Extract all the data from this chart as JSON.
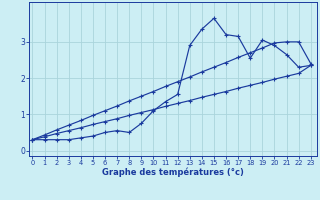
{
  "xlabel": "Graphe des températures (°c)",
  "background_color": "#cceef4",
  "grid_color": "#aad4dc",
  "line_color": "#1a3a9e",
  "x_ticks": [
    0,
    1,
    2,
    3,
    4,
    5,
    6,
    7,
    8,
    9,
    10,
    11,
    12,
    13,
    14,
    15,
    16,
    17,
    18,
    19,
    20,
    21,
    22,
    23
  ],
  "ylim": [
    -0.15,
    4.1
  ],
  "xlim": [
    -0.3,
    23.5
  ],
  "line1_y": [
    0.3,
    0.3,
    0.3,
    0.3,
    0.35,
    0.4,
    0.5,
    0.55,
    0.5,
    0.75,
    1.1,
    1.35,
    1.55,
    2.9,
    3.35,
    3.65,
    3.2,
    3.15,
    2.55,
    3.05,
    2.9,
    2.65,
    2.3,
    2.35
  ],
  "line2_y": [
    0.3,
    0.38,
    0.47,
    0.55,
    0.63,
    0.72,
    0.8,
    0.88,
    0.97,
    1.05,
    1.13,
    1.22,
    1.3,
    1.38,
    1.47,
    1.55,
    1.63,
    1.72,
    1.8,
    1.88,
    1.97,
    2.05,
    2.13,
    2.35
  ],
  "line3_y": [
    0.3,
    0.43,
    0.57,
    0.7,
    0.83,
    0.97,
    1.1,
    1.23,
    1.37,
    1.5,
    1.63,
    1.77,
    1.9,
    2.03,
    2.17,
    2.3,
    2.43,
    2.57,
    2.7,
    2.83,
    2.97,
    3.0,
    3.0,
    2.4
  ]
}
